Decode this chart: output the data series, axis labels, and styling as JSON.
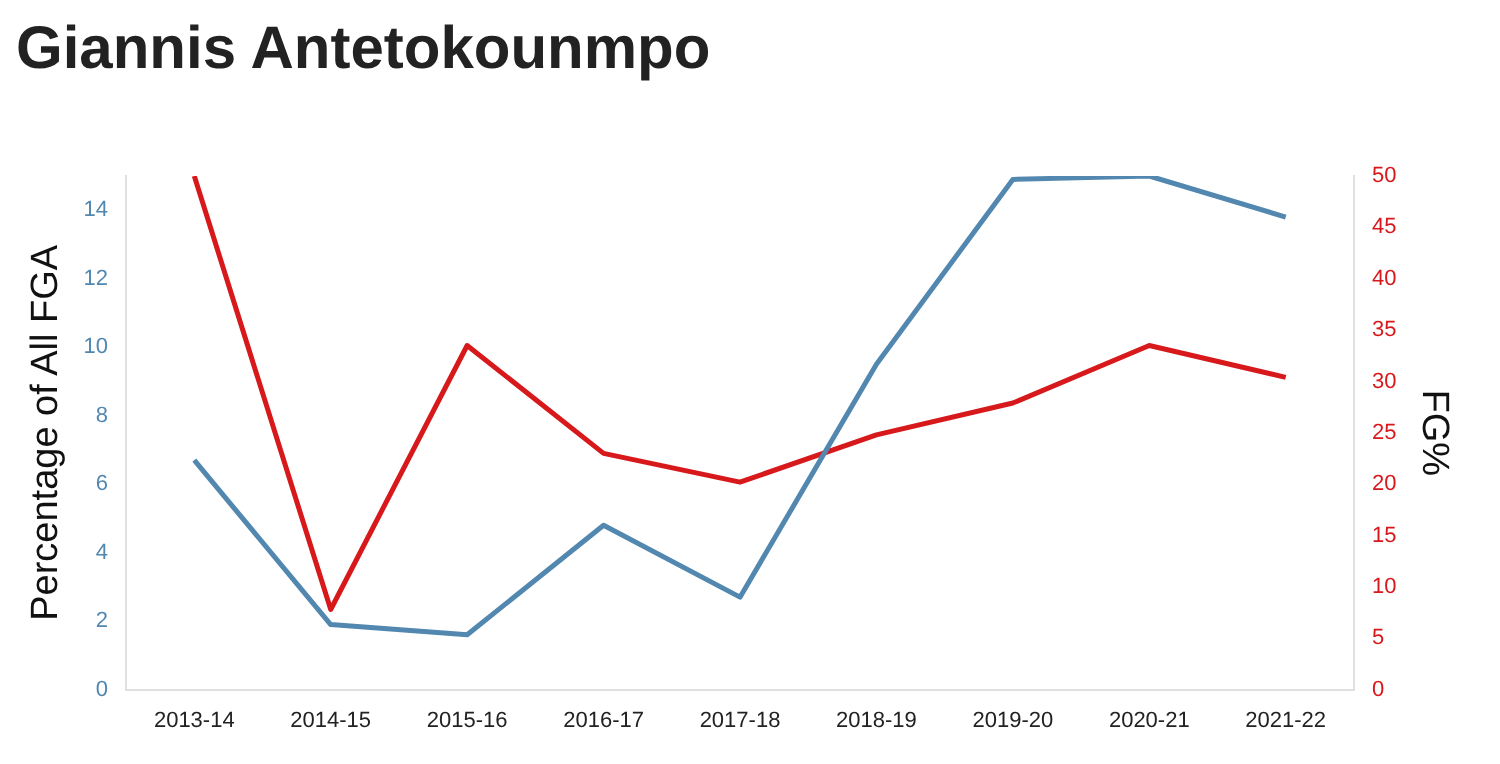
{
  "chart_data": {
    "type": "line",
    "title": "Giannis Antetokounmpo",
    "ylabel": "Percentage of All FGA",
    "y2label": "FG%",
    "categories": [
      "2013-14",
      "2014-15",
      "2015-16",
      "2016-17",
      "2017-18",
      "2018-19",
      "2019-20",
      "2020-21",
      "2021-22"
    ],
    "series": [
      {
        "color": "#5288b0",
        "values": [
          6.7,
          1.9,
          1.6,
          4.8,
          2.7,
          9.5,
          14.9,
          15.0,
          13.8
        ]
      },
      {
        "color": "#d7191c",
        "axis": "y2",
        "values": [
          50,
          7.8,
          33.5,
          23,
          20.2,
          24.8,
          27.9,
          33.5,
          30.4
        ]
      }
    ],
    "ylim": [
      0,
      15
    ],
    "yticks": [
      0,
      2,
      4,
      6,
      8,
      10,
      12,
      14
    ],
    "y2lim": [
      0,
      50
    ],
    "y2ticks": [
      0,
      5,
      10,
      15,
      20,
      25,
      30,
      35,
      40,
      45,
      50
    ],
    "grid": false,
    "legend": false,
    "marker": "none",
    "line_style": "solid"
  }
}
